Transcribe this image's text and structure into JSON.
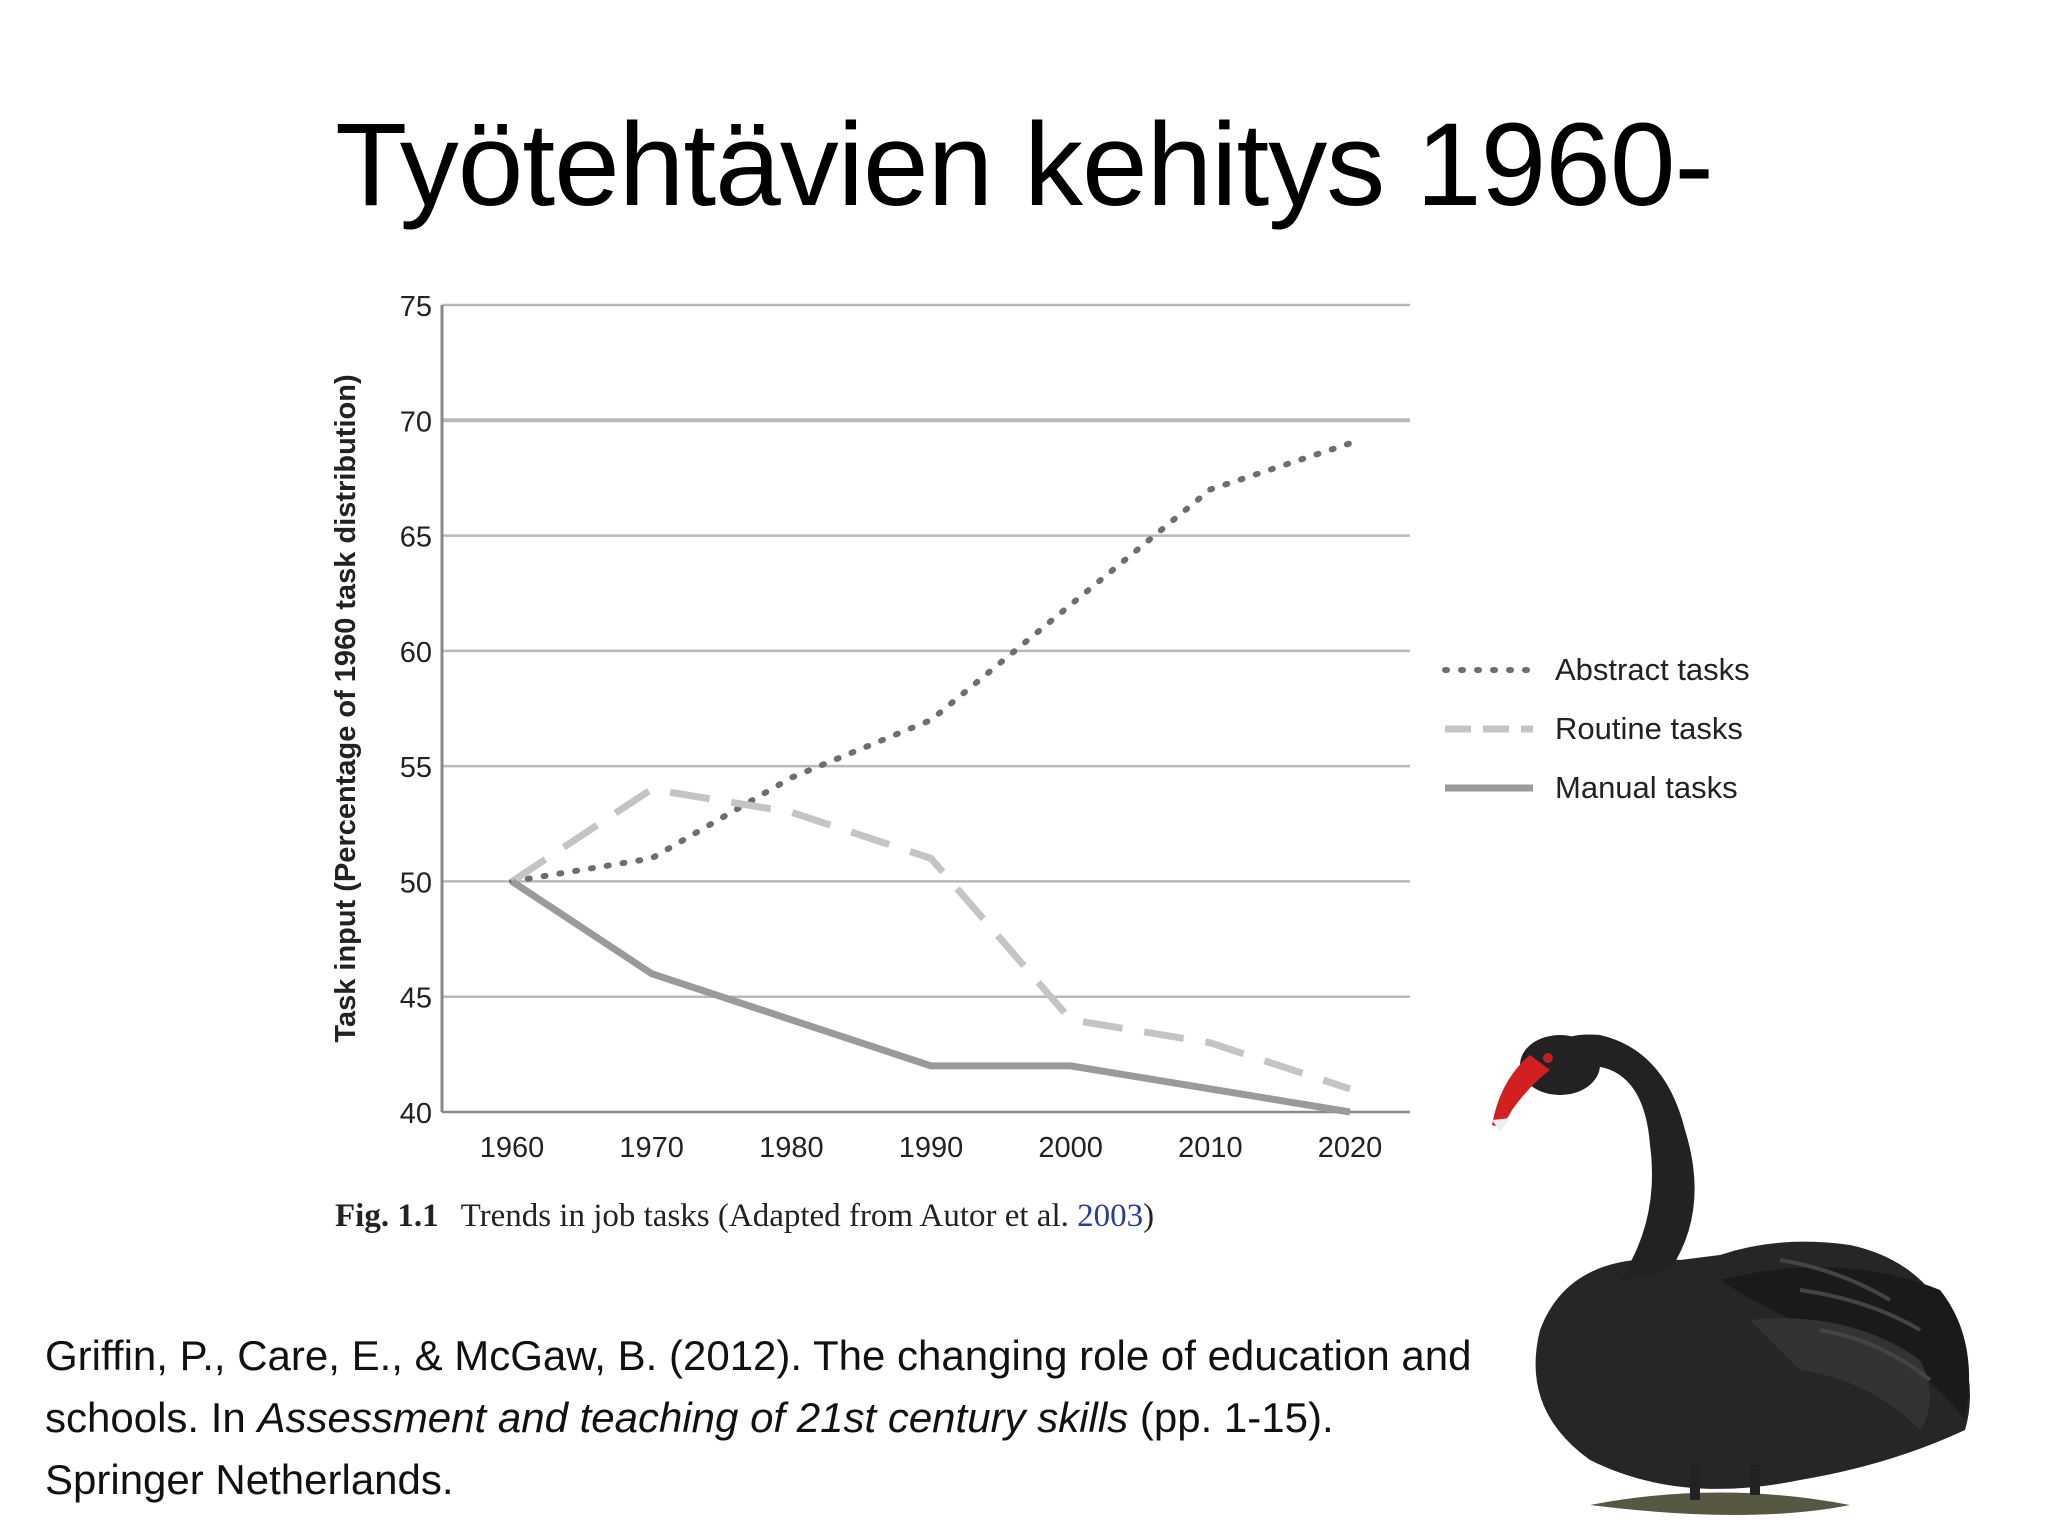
{
  "slide": {
    "title": "Työtehtävien kehitys 1960-"
  },
  "chart_data": {
    "type": "line",
    "x": [
      1960,
      1970,
      1980,
      1990,
      2000,
      2010,
      2020
    ],
    "series": [
      {
        "name": "Abstract tasks",
        "style": "dotted",
        "color": "#6e6e6e",
        "values": [
          50,
          51,
          54.5,
          57,
          62,
          67,
          69
        ]
      },
      {
        "name": "Routine tasks",
        "style": "dashed",
        "color": "#c4c4c4",
        "values": [
          50,
          54,
          53,
          51,
          44,
          43,
          41
        ]
      },
      {
        "name": "Manual tasks",
        "style": "solid",
        "color": "#9a9a9a",
        "values": [
          50,
          46,
          44,
          42,
          42,
          41,
          40
        ]
      }
    ],
    "xlabel": "",
    "ylabel": "Task input (Percentage of 1960 task distribution)",
    "ylim": [
      40,
      75
    ],
    "yticks": [
      40,
      45,
      50,
      55,
      60,
      65,
      70,
      75
    ],
    "xticks": [
      1960,
      1970,
      1980,
      1990,
      2000,
      2010,
      2020
    ],
    "grid": "horizontal",
    "legend_position": "right"
  },
  "caption": {
    "fig_label": "Fig. 1.1",
    "text": "Trends in job tasks (Adapted from Autor et al. ",
    "ref": "2003",
    "close": ")"
  },
  "citation": {
    "part1": "Griffin, P., Care, E., & McGaw, B. (2012). The changing role of education and schools. In ",
    "italic1": "Assessment and teaching of 21st century skills",
    "part2": " (pp. 1-15). Springer Netherlands."
  },
  "image": {
    "icon": "black-swan-icon"
  }
}
